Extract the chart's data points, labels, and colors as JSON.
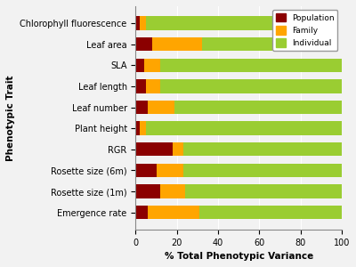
{
  "categories": [
    "Chlorophyll fluorescence",
    "Leaf area",
    "SLA",
    "Leaf length",
    "Leaf number",
    "Plant height",
    "RGR",
    "Rosette size (6m)",
    "Rosette size (1m)",
    "Emergence rate"
  ],
  "population": [
    2,
    8,
    4,
    5,
    6,
    2,
    18,
    10,
    12,
    6
  ],
  "family": [
    3,
    24,
    8,
    7,
    13,
    3,
    5,
    13,
    12,
    25
  ],
  "individual": [
    62,
    35,
    88,
    88,
    81,
    95,
    77,
    77,
    76,
    69
  ],
  "colors": {
    "population": "#8B0000",
    "family": "#FFA500",
    "individual": "#9ACD32"
  },
  "xlabel": "% Total Phenotypic Variance",
  "ylabel": "Phenotypic Trait",
  "xlim": [
    0,
    100
  ],
  "xticks": [
    0,
    20,
    40,
    60,
    80,
    100
  ],
  "legend_labels": [
    "Population",
    "Family",
    "Individual"
  ],
  "background_color": "#f2f2f2",
  "figsize": [
    4.0,
    3.0
  ],
  "dpi": 100
}
